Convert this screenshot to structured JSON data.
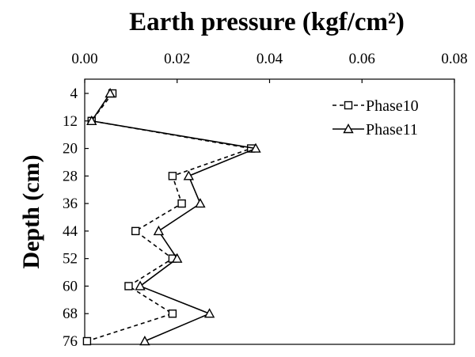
{
  "chart_data": {
    "type": "line",
    "title": "Earth pressure (kgf/cm²)",
    "xlabel": "Earth pressure (kgf/cm²)",
    "ylabel": "Depth (cm)",
    "x_axis_position": "top",
    "xlim": [
      0,
      0.08
    ],
    "x_ticks": [
      "0.00",
      "0.02",
      "0.04",
      "0.06",
      "0.08"
    ],
    "ylim": [
      4,
      76
    ],
    "y_inverted": true,
    "y_ticks": [
      "4",
      "12",
      "20",
      "28",
      "36",
      "44",
      "52",
      "60",
      "68",
      "76"
    ],
    "grid": false,
    "legend": "top-right",
    "series": [
      {
        "name": "Phase10",
        "line": "dashed",
        "marker": "square",
        "color": "#000000",
        "depth": [
          4,
          12,
          20,
          28,
          36,
          44,
          52,
          60,
          68,
          76
        ],
        "values": [
          0.006,
          0.0015,
          0.036,
          0.019,
          0.021,
          0.011,
          0.019,
          0.0095,
          0.019,
          0.0005
        ]
      },
      {
        "name": "Phase11",
        "line": "solid",
        "marker": "triangle",
        "color": "#000000",
        "depth": [
          4,
          12,
          20,
          28,
          36,
          44,
          52,
          60,
          68,
          76
        ],
        "values": [
          0.0055,
          0.0015,
          0.037,
          0.0225,
          0.025,
          0.016,
          0.02,
          0.012,
          0.027,
          0.013
        ]
      }
    ]
  }
}
